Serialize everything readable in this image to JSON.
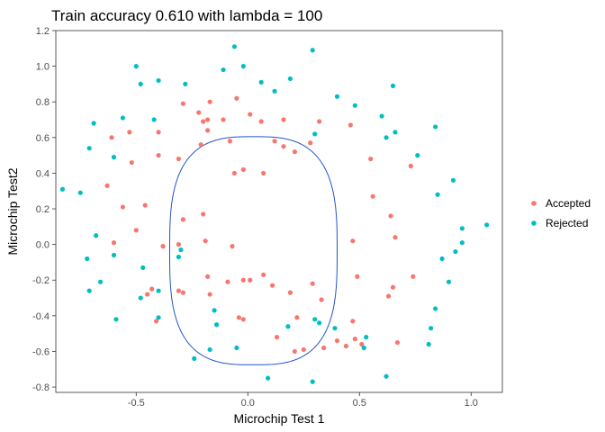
{
  "chart_data": {
    "type": "scatter",
    "title": "Train accuracy 0.610 with lambda = 100",
    "xlabel": "Microchip Test 1",
    "ylabel": "Microchip Test2",
    "xlim": [
      -0.86,
      1.14
    ],
    "ylim": [
      -0.83,
      1.2
    ],
    "x_ticks": [
      -0.5,
      0.0,
      0.5,
      1.0
    ],
    "x_tick_labels": [
      "-0.5",
      "0.0",
      "0.5",
      "1.0"
    ],
    "y_ticks": [
      -0.8,
      -0.6,
      -0.4,
      -0.2,
      0.0,
      0.2,
      0.4,
      0.6,
      0.8,
      1.0,
      1.2
    ],
    "y_tick_labels": [
      "-0.8",
      "-0.6",
      "-0.4",
      "-0.2",
      "0.0",
      "0.2",
      "0.4",
      "0.6",
      "0.8",
      "1.0",
      "1.2"
    ],
    "grid": false,
    "legend_position": "right",
    "series": [
      {
        "name": "Accepted",
        "color": "#F8766D",
        "points": [
          [
            -0.61,
            0.6
          ],
          [
            -0.52,
            0.46
          ],
          [
            -0.4,
            0.63
          ],
          [
            -0.53,
            0.63
          ],
          [
            -0.63,
            0.33
          ],
          [
            -0.56,
            0.21
          ],
          [
            -0.46,
            0.22
          ],
          [
            -0.4,
            0.5
          ],
          [
            -0.31,
            0.48
          ],
          [
            -0.21,
            0.56
          ],
          [
            -0.18,
            0.64
          ],
          [
            -0.08,
            0.58
          ],
          [
            -0.06,
            0.4
          ],
          [
            -0.02,
            0.42
          ],
          [
            0.07,
            0.4
          ],
          [
            0.12,
            0.58
          ],
          [
            0.16,
            0.55
          ],
          [
            0.21,
            0.52
          ],
          [
            -0.2,
            0.69
          ],
          [
            -0.18,
            0.7
          ],
          [
            -0.11,
            0.7
          ],
          [
            -0.29,
            0.79
          ],
          [
            -0.17,
            0.8
          ],
          [
            -0.22,
            0.74
          ],
          [
            -0.05,
            0.82
          ],
          [
            0.01,
            0.73
          ],
          [
            0.06,
            0.69
          ],
          [
            0.16,
            0.7
          ],
          [
            0.32,
            0.69
          ],
          [
            0.28,
            0.57
          ],
          [
            0.46,
            0.67
          ],
          [
            0.55,
            0.48
          ],
          [
            0.56,
            0.27
          ],
          [
            0.64,
            0.16
          ],
          [
            0.66,
            0.04
          ],
          [
            0.73,
            0.44
          ],
          [
            0.47,
            0.02
          ],
          [
            0.49,
            -0.18
          ],
          [
            0.65,
            -0.24
          ],
          [
            0.63,
            -0.29
          ],
          [
            0.74,
            -0.18
          ],
          [
            -0.2,
            0.17
          ],
          [
            -0.29,
            0.14
          ],
          [
            -0.5,
            0.08
          ],
          [
            -0.38,
            -0.01
          ],
          [
            -0.31,
            0.0
          ],
          [
            -0.19,
            0.02
          ],
          [
            -0.07,
            -0.01
          ],
          [
            -0.6,
            0.01
          ],
          [
            -0.43,
            -0.25
          ],
          [
            -0.45,
            -0.28
          ],
          [
            -0.31,
            -0.26
          ],
          [
            -0.29,
            -0.27
          ],
          [
            -0.18,
            -0.18
          ],
          [
            -0.17,
            -0.28
          ],
          [
            -0.09,
            -0.21
          ],
          [
            -0.02,
            -0.2
          ],
          [
            0.07,
            -0.17
          ],
          [
            0.01,
            -0.2
          ],
          [
            0.11,
            -0.23
          ],
          [
            0.19,
            -0.27
          ],
          [
            0.29,
            -0.22
          ],
          [
            0.33,
            -0.31
          ],
          [
            0.22,
            -0.41
          ],
          [
            -0.02,
            -0.42
          ],
          [
            0.13,
            -0.52
          ],
          [
            0.21,
            -0.6
          ],
          [
            0.25,
            -0.59
          ],
          [
            0.34,
            -0.58
          ],
          [
            0.44,
            -0.57
          ],
          [
            0.47,
            -0.43
          ],
          [
            0.48,
            -0.53
          ],
          [
            0.51,
            -0.56
          ],
          [
            0.67,
            -0.55
          ],
          [
            0.4,
            -0.54
          ],
          [
            -0.04,
            -0.41
          ],
          [
            -0.41,
            -0.43
          ]
        ]
      },
      {
        "name": "Rejected",
        "color": "#00BFC4",
        "points": [
          [
            -0.69,
            0.68
          ],
          [
            -0.71,
            0.54
          ],
          [
            -0.56,
            0.71
          ],
          [
            -0.6,
            0.49
          ],
          [
            -0.48,
            0.9
          ],
          [
            -0.5,
            1.0
          ],
          [
            -0.4,
            0.92
          ],
          [
            -0.42,
            0.7
          ],
          [
            -0.28,
            0.9
          ],
          [
            -0.11,
            0.98
          ],
          [
            -0.06,
            1.11
          ],
          [
            -0.02,
            1.0
          ],
          [
            0.06,
            0.91
          ],
          [
            0.12,
            0.86
          ],
          [
            0.19,
            0.93
          ],
          [
            0.29,
            1.09
          ],
          [
            0.3,
            0.62
          ],
          [
            0.4,
            0.83
          ],
          [
            0.48,
            0.78
          ],
          [
            0.62,
            0.6
          ],
          [
            0.65,
            0.89
          ],
          [
            0.6,
            0.72
          ],
          [
            0.66,
            0.63
          ],
          [
            0.76,
            0.5
          ],
          [
            0.84,
            0.66
          ],
          [
            0.85,
            0.28
          ],
          [
            0.92,
            0.36
          ],
          [
            0.96,
            0.09
          ],
          [
            1.07,
            0.11
          ],
          [
            0.96,
            0.01
          ],
          [
            0.93,
            -0.04
          ],
          [
            0.87,
            -0.08
          ],
          [
            0.9,
            -0.21
          ],
          [
            0.84,
            -0.36
          ],
          [
            0.82,
            -0.47
          ],
          [
            0.81,
            -0.56
          ],
          [
            0.62,
            -0.74
          ],
          [
            0.52,
            -0.58
          ],
          [
            0.53,
            -0.52
          ],
          [
            0.39,
            -0.47
          ],
          [
            0.29,
            -0.77
          ],
          [
            0.09,
            -0.75
          ],
          [
            -0.05,
            -0.58
          ],
          [
            -0.17,
            -0.59
          ],
          [
            -0.24,
            -0.64
          ],
          [
            -0.15,
            -0.37
          ],
          [
            -0.14,
            -0.45
          ],
          [
            -0.4,
            -0.41
          ],
          [
            -0.48,
            -0.3
          ],
          [
            -0.47,
            -0.13
          ],
          [
            -0.4,
            -0.26
          ],
          [
            -0.31,
            -0.07
          ],
          [
            -0.3,
            -0.03
          ],
          [
            -0.59,
            -0.42
          ],
          [
            -0.71,
            -0.26
          ],
          [
            -0.72,
            -0.08
          ],
          [
            -0.66,
            -0.21
          ],
          [
            -0.75,
            0.29
          ],
          [
            -0.83,
            0.31
          ],
          [
            -0.68,
            0.05
          ],
          [
            -0.6,
            -0.06
          ],
          [
            0.3,
            -0.42
          ],
          [
            0.32,
            -0.44
          ],
          [
            0.18,
            -0.46
          ]
        ]
      }
    ],
    "boundary": {
      "color": "#2255CC",
      "center": [
        0.025,
        -0.035
      ],
      "radius_x": 0.375,
      "radius_y": 0.64,
      "exponent": 3.0
    }
  }
}
